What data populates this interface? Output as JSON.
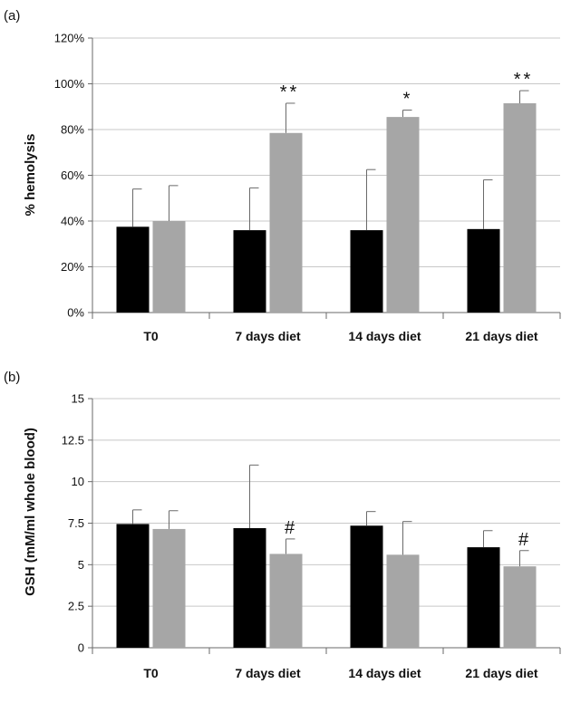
{
  "charts": [
    {
      "panel_label": "(a)",
      "ylabel": "% hemolysis",
      "y_tick_labels": [
        "0%",
        "20%",
        "40%",
        "60%",
        "80%",
        "100%",
        "120%"
      ],
      "chart_data": {
        "type": "bar",
        "categories": [
          "T0",
          "7 days diet",
          "14 days diet",
          "21 days diet"
        ],
        "ylim": [
          0,
          120
        ],
        "y_ticks": [
          0,
          20,
          40,
          60,
          80,
          100,
          120
        ],
        "grid": true,
        "series": [
          {
            "color": "#000000",
            "values": [
              37.5,
              36,
              36,
              36.5
            ],
            "error": [
              16.5,
              18.5,
              26.5,
              21.5
            ]
          },
          {
            "color": "#a6a6a6",
            "values": [
              40,
              78.5,
              85.5,
              91.5
            ],
            "error": [
              15.5,
              13,
              3,
              5.5
            ]
          }
        ],
        "annotations": [
          "",
          "**",
          "*",
          "**"
        ]
      }
    },
    {
      "panel_label": "(b)",
      "ylabel": "GSH (mM/ml whole blood)",
      "y_tick_labels": [
        "0",
        "2.5",
        "5",
        "7.5",
        "10",
        "12.5",
        "15"
      ],
      "chart_data": {
        "type": "bar",
        "categories": [
          "T0",
          "7 days diet",
          "14 days diet",
          "21 days diet"
        ],
        "ylim": [
          0,
          15
        ],
        "y_ticks": [
          0,
          2.5,
          5,
          7.5,
          10,
          12.5,
          15
        ],
        "grid": true,
        "series": [
          {
            "color": "#000000",
            "values": [
              7.45,
              7.2,
              7.35,
              6.05
            ],
            "error": [
              0.85,
              3.8,
              0.85,
              1.0
            ]
          },
          {
            "color": "#a6a6a6",
            "values": [
              7.15,
              5.65,
              5.6,
              4.9
            ],
            "error": [
              1.1,
              0.9,
              2.0,
              0.95
            ]
          }
        ],
        "annotations": [
          "",
          "#",
          "",
          "#"
        ]
      }
    }
  ]
}
